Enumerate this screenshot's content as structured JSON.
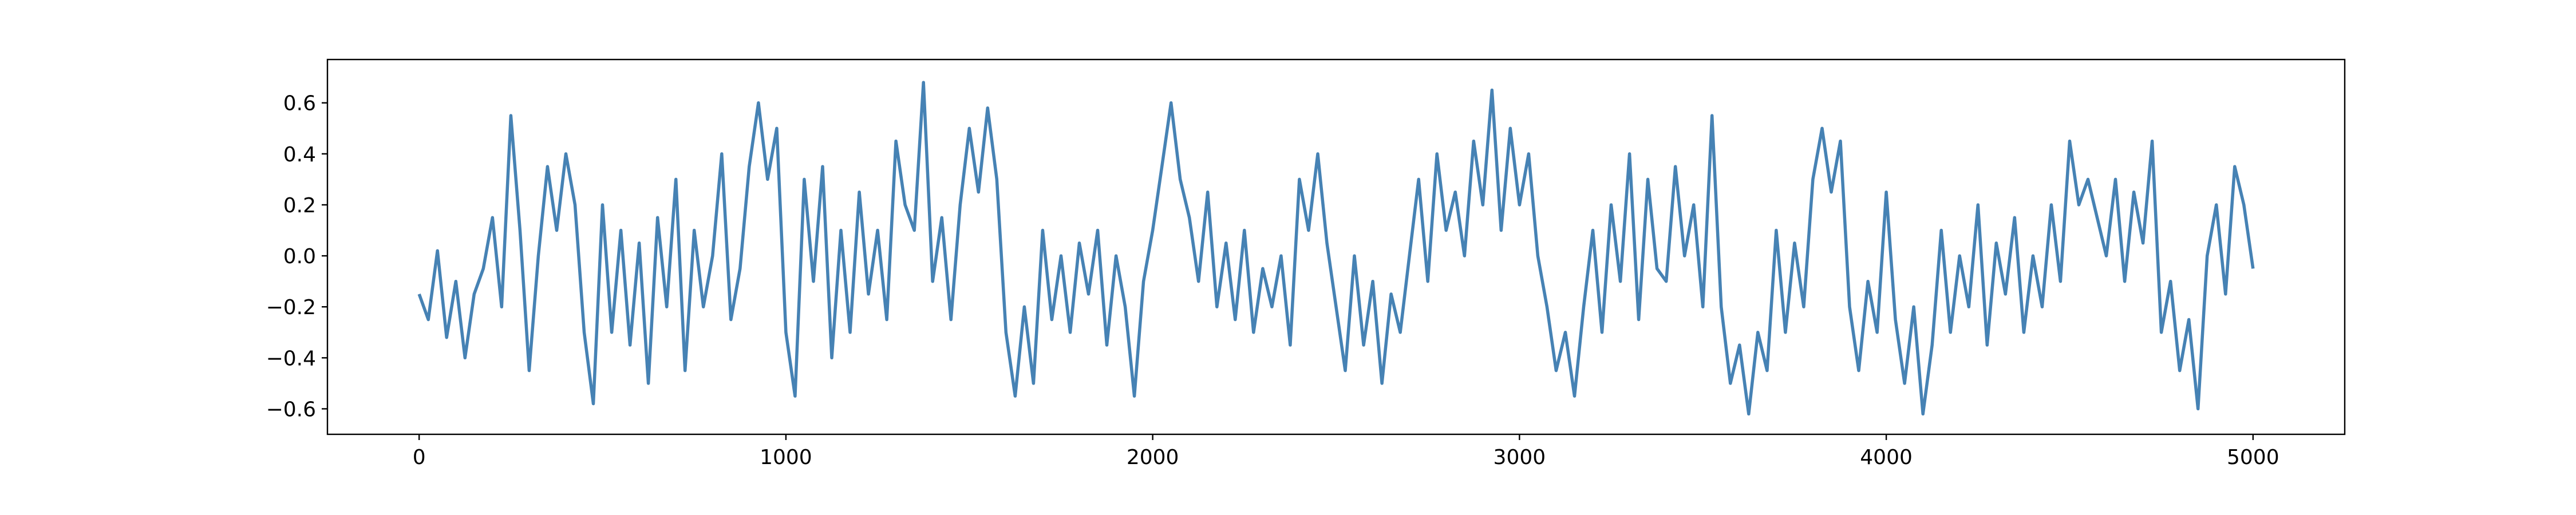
{
  "chart_data": {
    "type": "line",
    "x": [
      0,
      25,
      50,
      75,
      100,
      125,
      150,
      175,
      200,
      225,
      250,
      275,
      300,
      325,
      350,
      375,
      400,
      425,
      450,
      475,
      500,
      525,
      550,
      575,
      600,
      625,
      650,
      675,
      700,
      725,
      750,
      775,
      800,
      825,
      850,
      875,
      900,
      925,
      950,
      975,
      1000,
      1025,
      1050,
      1075,
      1100,
      1125,
      1150,
      1175,
      1200,
      1225,
      1250,
      1275,
      1300,
      1325,
      1350,
      1375,
      1400,
      1425,
      1450,
      1475,
      1500,
      1525,
      1550,
      1575,
      1600,
      1625,
      1650,
      1675,
      1700,
      1725,
      1750,
      1775,
      1800,
      1825,
      1850,
      1875,
      1900,
      1925,
      1950,
      1975,
      2000,
      2025,
      2050,
      2075,
      2100,
      2125,
      2150,
      2175,
      2200,
      2225,
      2250,
      2275,
      2300,
      2325,
      2350,
      2375,
      2400,
      2425,
      2450,
      2475,
      2500,
      2525,
      2550,
      2575,
      2600,
      2625,
      2650,
      2675,
      2700,
      2725,
      2750,
      2775,
      2800,
      2825,
      2850,
      2875,
      2900,
      2925,
      2950,
      2975,
      3000,
      3025,
      3050,
      3075,
      3100,
      3125,
      3150,
      3175,
      3200,
      3225,
      3250,
      3275,
      3300,
      3325,
      3350,
      3375,
      3400,
      3425,
      3450,
      3475,
      3500,
      3525,
      3550,
      3575,
      3600,
      3625,
      3650,
      3675,
      3700,
      3725,
      3750,
      3775,
      3800,
      3825,
      3850,
      3875,
      3900,
      3925,
      3950,
      3975,
      4000,
      4025,
      4050,
      4075,
      4100,
      4125,
      4150,
      4175,
      4200,
      4225,
      4250,
      4275,
      4300,
      4325,
      4350,
      4375,
      4400,
      4425,
      4450,
      4475,
      4500,
      4525,
      4550,
      4575,
      4600,
      4625,
      4650,
      4675,
      4700,
      4725,
      4750,
      4775,
      4800,
      4825,
      4850,
      4875,
      4900,
      4925,
      4950,
      4975,
      5000
    ],
    "series": [
      {
        "color": "#4682b4",
        "values": [
          -0.15,
          -0.25,
          0.02,
          -0.32,
          -0.1,
          -0.4,
          -0.15,
          -0.05,
          0.15,
          -0.2,
          0.55,
          0.1,
          -0.45,
          0.0,
          0.35,
          0.1,
          0.4,
          0.2,
          -0.3,
          -0.58,
          0.2,
          -0.3,
          0.1,
          -0.35,
          0.05,
          -0.5,
          0.15,
          -0.2,
          0.3,
          -0.45,
          0.1,
          -0.2,
          0.0,
          0.4,
          -0.25,
          -0.05,
          0.35,
          0.6,
          0.3,
          0.5,
          -0.3,
          -0.55,
          0.3,
          -0.1,
          0.35,
          -0.4,
          0.1,
          -0.3,
          0.25,
          -0.15,
          0.1,
          -0.25,
          0.45,
          0.2,
          0.1,
          0.68,
          -0.1,
          0.15,
          -0.25,
          0.2,
          0.5,
          0.25,
          0.58,
          0.3,
          -0.3,
          -0.55,
          -0.2,
          -0.5,
          0.1,
          -0.25,
          0.0,
          -0.3,
          0.05,
          -0.15,
          0.1,
          -0.35,
          0.0,
          -0.2,
          -0.55,
          -0.1,
          0.1,
          0.35,
          0.6,
          0.3,
          0.15,
          -0.1,
          0.25,
          -0.2,
          0.05,
          -0.25,
          0.1,
          -0.3,
          -0.05,
          -0.2,
          0.0,
          -0.35,
          0.3,
          0.1,
          0.4,
          0.05,
          -0.2,
          -0.45,
          0.0,
          -0.35,
          -0.1,
          -0.5,
          -0.15,
          -0.3,
          0.0,
          0.3,
          -0.1,
          0.4,
          0.1,
          0.25,
          0.0,
          0.45,
          0.2,
          0.65,
          0.1,
          0.5,
          0.2,
          0.4,
          0.0,
          -0.2,
          -0.45,
          -0.3,
          -0.55,
          -0.2,
          0.1,
          -0.3,
          0.2,
          -0.1,
          0.4,
          -0.25,
          0.3,
          -0.05,
          -0.1,
          0.35,
          0.0,
          0.2,
          -0.2,
          0.55,
          -0.2,
          -0.5,
          -0.35,
          -0.62,
          -0.3,
          -0.45,
          0.1,
          -0.3,
          0.05,
          -0.2,
          0.3,
          0.5,
          0.25,
          0.45,
          -0.2,
          -0.45,
          -0.1,
          -0.3,
          0.25,
          -0.25,
          -0.5,
          -0.2,
          -0.62,
          -0.35,
          0.1,
          -0.3,
          0.0,
          -0.2,
          0.2,
          -0.35,
          0.05,
          -0.15,
          0.15,
          -0.3,
          0.0,
          -0.2,
          0.2,
          -0.1,
          0.45,
          0.2,
          0.3,
          0.15,
          0.0,
          0.3,
          -0.1,
          0.25,
          0.05,
          0.45,
          -0.3,
          -0.1,
          -0.45,
          -0.25,
          -0.6,
          0.0,
          0.2,
          -0.15,
          0.35,
          0.2,
          -0.05
        ]
      }
    ],
    "xlim": [
      -250,
      5250
    ],
    "ylim": [
      -0.7,
      0.77
    ],
    "xticks": [
      0,
      1000,
      2000,
      3000,
      4000,
      5000
    ],
    "yticks": [
      {
        "value": -0.6,
        "label": "−0.6"
      },
      {
        "value": -0.4,
        "label": "−0.4"
      },
      {
        "value": -0.2,
        "label": "−0.2"
      },
      {
        "value": 0,
        "label": "0.0"
      },
      0.2,
      0.4,
      0.6
    ],
    "grid": false
  }
}
